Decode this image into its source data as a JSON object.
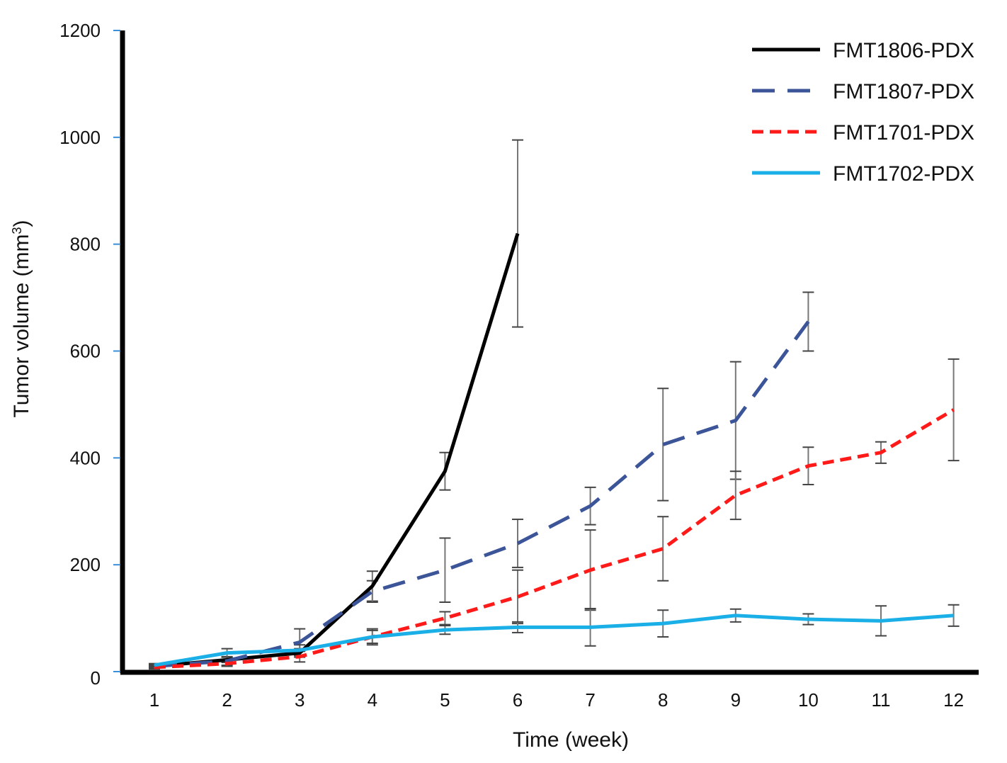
{
  "chart_data": {
    "type": "line",
    "title": "",
    "xlabel": "Time (week)",
    "ylabel": "Tumor volume (mm",
    "ylabel_superscript": "3",
    "ylabel_suffix": ")",
    "x": [
      1,
      2,
      3,
      4,
      5,
      6,
      7,
      8,
      9,
      10,
      11,
      12
    ],
    "xticks": [
      "1",
      "2",
      "3",
      "4",
      "5",
      "6",
      "7",
      "8",
      "9",
      "10",
      "11",
      "12"
    ],
    "yticks": [
      "0",
      "200",
      "400",
      "600",
      "800",
      "1000",
      "1200"
    ],
    "ylim": [
      0,
      1200
    ],
    "grid": false,
    "legend_position": "top-right",
    "series": [
      {
        "name": "FMT1806-PDX",
        "color": "#000000",
        "dash": "solid",
        "x": [
          1,
          2,
          3,
          4,
          5,
          6
        ],
        "values": [
          10,
          22,
          35,
          160,
          375,
          820
        ],
        "err": [
          3,
          5,
          8,
          28,
          35,
          175
        ]
      },
      {
        "name": "FMT1807-PDX",
        "color": "#3b5598",
        "dash": "long-dash",
        "x": [
          1,
          2,
          3,
          4,
          5,
          6,
          7,
          8,
          9,
          10
        ],
        "values": [
          10,
          20,
          55,
          150,
          190,
          240,
          310,
          425,
          470,
          655
        ],
        "err": [
          3,
          8,
          25,
          20,
          60,
          45,
          35,
          105,
          110,
          55
        ]
      },
      {
        "name": "FMT1701-PDX",
        "color": "#ff1a1a",
        "dash": "short-dash",
        "x": [
          1,
          2,
          3,
          4,
          5,
          6,
          7,
          8,
          9,
          10,
          11,
          12
        ],
        "values": [
          8,
          15,
          28,
          65,
          100,
          140,
          190,
          230,
          330,
          385,
          410,
          490
        ],
        "err": [
          3,
          5,
          10,
          15,
          12,
          50,
          75,
          60,
          45,
          35,
          20,
          95
        ]
      },
      {
        "name": "FMT1702-PDX",
        "color": "#1aafe6",
        "dash": "solid",
        "x": [
          1,
          2,
          3,
          4,
          5,
          6,
          7,
          8,
          9,
          10,
          11,
          12
        ],
        "values": [
          12,
          35,
          40,
          65,
          78,
          83,
          83,
          90,
          105,
          98,
          95,
          105
        ],
        "err": [
          3,
          8,
          10,
          12,
          8,
          10,
          35,
          25,
          12,
          10,
          28,
          20
        ]
      }
    ]
  }
}
